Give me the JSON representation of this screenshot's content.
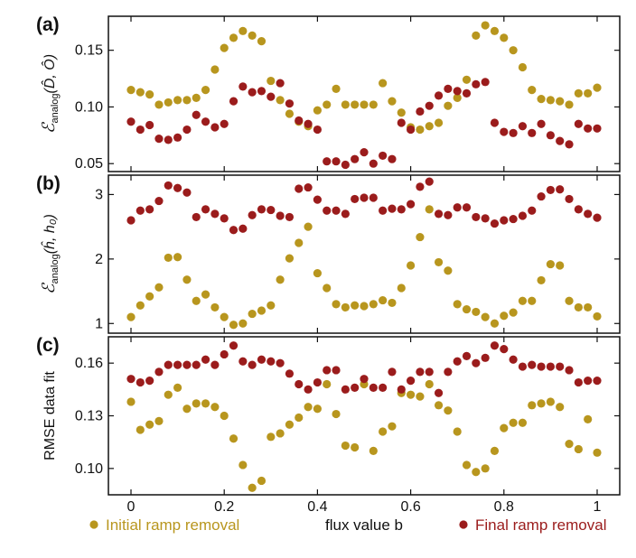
{
  "colors": {
    "initial": "#b8961e",
    "final": "#9b1c1c",
    "axis": "#111111"
  },
  "legend": {
    "initial_label": "Initial ramp removal",
    "final_label": "Final ramp removal"
  },
  "xlabel": "flux value  b",
  "chart_data": [
    {
      "type": "scatter",
      "panel_label": "(a)",
      "ylabel_main": "ℰ",
      "ylabel_sub": "analog",
      "ylabel_args": "(D̂, Ô)",
      "xlim": [
        0,
        1
      ],
      "ylim": [
        0.043,
        0.18
      ],
      "xticks": [
        "0",
        "0.2",
        "0.4",
        "0.6",
        "0.8",
        "1"
      ],
      "yticks": [
        "0.05",
        "0.10",
        "0.15"
      ],
      "ytick_values": [
        0.05,
        0.1,
        0.15
      ],
      "x": [
        0.0,
        0.02,
        0.04,
        0.06,
        0.08,
        0.1,
        0.12,
        0.14,
        0.16,
        0.18,
        0.2,
        0.22,
        0.24,
        0.26,
        0.28,
        0.3,
        0.32,
        0.34,
        0.36,
        0.38,
        0.4,
        0.42,
        0.44,
        0.46,
        0.48,
        0.5,
        0.52,
        0.54,
        0.56,
        0.58,
        0.6,
        0.62,
        0.64,
        0.66,
        0.68,
        0.7,
        0.72,
        0.74,
        0.76,
        0.78,
        0.8,
        0.82,
        0.84,
        0.86,
        0.88,
        0.9,
        0.92,
        0.94,
        0.96,
        0.98,
        1.0
      ],
      "series": [
        {
          "name": "Initial ramp removal",
          "values": [
            0.115,
            0.113,
            0.111,
            0.102,
            0.104,
            0.106,
            0.106,
            0.108,
            0.115,
            0.133,
            0.152,
            0.161,
            0.167,
            0.163,
            0.158,
            0.123,
            0.106,
            0.094,
            0.087,
            0.083,
            0.097,
            0.102,
            0.116,
            0.102,
            0.102,
            0.102,
            0.102,
            0.121,
            0.105,
            0.095,
            0.082,
            0.08,
            0.083,
            0.086,
            0.101,
            0.108,
            0.124,
            0.163,
            0.172,
            0.167,
            0.161,
            0.15,
            0.135,
            0.115,
            0.107,
            0.106,
            0.105,
            0.102,
            0.112,
            0.112,
            0.117
          ]
        },
        {
          "name": "Final ramp removal",
          "values": [
            0.087,
            0.08,
            0.084,
            0.072,
            0.071,
            0.073,
            0.08,
            0.093,
            0.087,
            0.082,
            0.085,
            0.105,
            0.118,
            0.113,
            0.114,
            0.109,
            0.121,
            0.103,
            0.088,
            0.085,
            0.08,
            0.052,
            0.052,
            0.049,
            0.054,
            0.06,
            0.05,
            0.057,
            0.054,
            0.086,
            0.08,
            0.096,
            0.101,
            0.11,
            0.116,
            0.114,
            0.112,
            0.12,
            0.122,
            0.086,
            0.078,
            0.077,
            0.083,
            0.077,
            0.085,
            0.075,
            0.07,
            0.067,
            0.085,
            0.081,
            0.081
          ]
        }
      ]
    },
    {
      "type": "scatter",
      "panel_label": "(b)",
      "ylabel_main": "ℰ",
      "ylabel_sub": "analog",
      "ylabel_args": "(ĥ, h₀)",
      "xlim": [
        0,
        1
      ],
      "ylim": [
        0.85,
        3.3
      ],
      "xticks": [
        "0",
        "0.2",
        "0.4",
        "0.6",
        "0.8",
        "1"
      ],
      "yticks": [
        "1",
        "2",
        "3"
      ],
      "ytick_values": [
        1,
        2,
        3
      ],
      "x": [
        0.0,
        0.02,
        0.04,
        0.06,
        0.08,
        0.1,
        0.12,
        0.14,
        0.16,
        0.18,
        0.2,
        0.22,
        0.24,
        0.26,
        0.28,
        0.3,
        0.32,
        0.34,
        0.36,
        0.38,
        0.4,
        0.42,
        0.44,
        0.46,
        0.48,
        0.5,
        0.52,
        0.54,
        0.56,
        0.58,
        0.6,
        0.62,
        0.64,
        0.66,
        0.68,
        0.7,
        0.72,
        0.74,
        0.76,
        0.78,
        0.8,
        0.82,
        0.84,
        0.86,
        0.88,
        0.9,
        0.92,
        0.94,
        0.96,
        0.98,
        1.0
      ],
      "series": [
        {
          "name": "Initial ramp removal",
          "values": [
            1.1,
            1.28,
            1.42,
            1.56,
            2.02,
            2.03,
            1.68,
            1.35,
            1.45,
            1.25,
            1.1,
            0.98,
            1.0,
            1.15,
            1.2,
            1.28,
            1.68,
            2.01,
            2.25,
            2.5,
            1.78,
            1.55,
            1.3,
            1.25,
            1.28,
            1.27,
            1.3,
            1.36,
            1.32,
            1.55,
            1.9,
            2.34,
            2.77,
            1.95,
            1.82,
            1.3,
            1.22,
            1.18,
            1.1,
            1.0,
            1.12,
            1.17,
            1.35,
            1.35,
            1.67,
            1.92,
            1.9,
            1.35,
            1.25,
            1.25,
            1.11
          ]
        },
        {
          "name": "Final ramp removal",
          "values": [
            2.6,
            2.75,
            2.77,
            2.9,
            3.14,
            3.1,
            3.03,
            2.65,
            2.77,
            2.7,
            2.63,
            2.45,
            2.47,
            2.68,
            2.77,
            2.76,
            2.67,
            2.65,
            3.09,
            3.11,
            2.92,
            2.75,
            2.75,
            2.7,
            2.93,
            2.95,
            2.95,
            2.75,
            2.78,
            2.77,
            2.85,
            3.12,
            3.2,
            2.7,
            2.68,
            2.8,
            2.8,
            2.65,
            2.63,
            2.55,
            2.6,
            2.62,
            2.67,
            2.75,
            2.97,
            3.07,
            3.08,
            2.93,
            2.77,
            2.7,
            2.64
          ]
        }
      ]
    },
    {
      "type": "scatter",
      "panel_label": "(c)",
      "ylabel": "RMSE data fit",
      "xlim": [
        0,
        1
      ],
      "ylim": [
        0.085,
        0.175
      ],
      "xticks": [
        "0",
        "0.2",
        "0.4",
        "0.6",
        "0.8",
        "1"
      ],
      "yticks": [
        "0.10",
        "0.13",
        "0.16"
      ],
      "ytick_values": [
        0.1,
        0.13,
        0.16
      ],
      "x": [
        0.0,
        0.02,
        0.04,
        0.06,
        0.08,
        0.1,
        0.12,
        0.14,
        0.16,
        0.18,
        0.2,
        0.22,
        0.24,
        0.26,
        0.28,
        0.3,
        0.32,
        0.34,
        0.36,
        0.38,
        0.4,
        0.42,
        0.44,
        0.46,
        0.48,
        0.5,
        0.52,
        0.54,
        0.56,
        0.58,
        0.6,
        0.62,
        0.64,
        0.66,
        0.68,
        0.7,
        0.72,
        0.74,
        0.76,
        0.78,
        0.8,
        0.82,
        0.84,
        0.86,
        0.88,
        0.9,
        0.92,
        0.94,
        0.96,
        0.98,
        1.0
      ],
      "series": [
        {
          "name": "Initial ramp removal",
          "values": [
            0.138,
            0.122,
            0.125,
            0.127,
            0.142,
            0.146,
            0.134,
            0.137,
            0.137,
            0.135,
            0.13,
            0.117,
            0.102,
            0.089,
            0.093,
            0.118,
            0.12,
            0.125,
            0.129,
            0.135,
            0.134,
            0.148,
            0.131,
            0.113,
            0.112,
            0.148,
            0.11,
            0.121,
            0.124,
            0.143,
            0.142,
            0.141,
            0.148,
            0.136,
            0.133,
            0.121,
            0.102,
            0.098,
            0.1,
            0.11,
            0.123,
            0.126,
            0.126,
            0.136,
            0.137,
            0.138,
            0.135,
            0.114,
            0.111,
            0.128,
            0.109
          ]
        },
        {
          "name": "Final ramp removal",
          "values": [
            0.151,
            0.149,
            0.15,
            0.155,
            0.159,
            0.159,
            0.159,
            0.159,
            0.162,
            0.159,
            0.165,
            0.17,
            0.161,
            0.159,
            0.162,
            0.161,
            0.16,
            0.154,
            0.148,
            0.145,
            0.149,
            0.156,
            0.156,
            0.145,
            0.146,
            0.151,
            0.146,
            0.146,
            0.155,
            0.145,
            0.15,
            0.155,
            0.155,
            0.143,
            0.155,
            0.161,
            0.164,
            0.16,
            0.163,
            0.17,
            0.168,
            0.162,
            0.158,
            0.159,
            0.158,
            0.158,
            0.158,
            0.156,
            0.149,
            0.15,
            0.15
          ]
        }
      ]
    }
  ]
}
